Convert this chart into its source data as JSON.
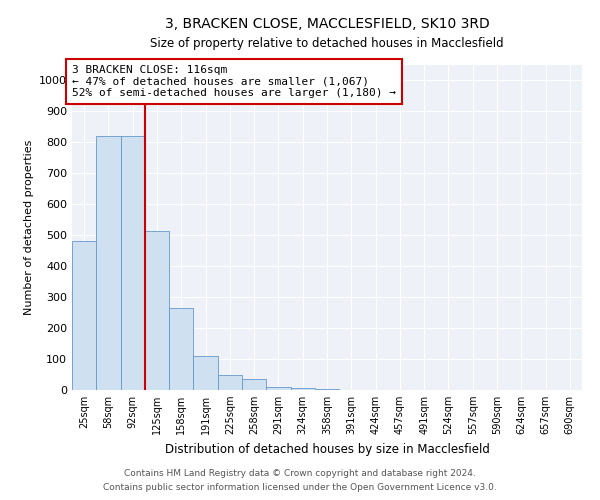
{
  "title": "3, BRACKEN CLOSE, MACCLESFIELD, SK10 3RD",
  "subtitle": "Size of property relative to detached houses in Macclesfield",
  "xlabel": "Distribution of detached houses by size in Macclesfield",
  "ylabel": "Number of detached properties",
  "footnote1": "Contains HM Land Registry data © Crown copyright and database right 2024.",
  "footnote2": "Contains public sector information licensed under the Open Government Licence v3.0.",
  "annotation_title": "3 BRACKEN CLOSE: 116sqm",
  "annotation_line1": "← 47% of detached houses are smaller (1,067)",
  "annotation_line2": "52% of semi-detached houses are larger (1,180) →",
  "bar_color": "#cfe0f0",
  "bar_edge_color": "#6699cc",
  "vline_color": "#cc0000",
  "vline_x": 2.5,
  "categories": [
    "25sqm",
    "58sqm",
    "92sqm",
    "125sqm",
    "158sqm",
    "191sqm",
    "225sqm",
    "258sqm",
    "291sqm",
    "324sqm",
    "358sqm",
    "391sqm",
    "424sqm",
    "457sqm",
    "491sqm",
    "524sqm",
    "557sqm",
    "590sqm",
    "624sqm",
    "657sqm",
    "690sqm"
  ],
  "values": [
    480,
    820,
    820,
    515,
    265,
    110,
    50,
    35,
    10,
    5,
    2,
    0,
    0,
    0,
    0,
    0,
    0,
    0,
    0,
    0,
    0
  ],
  "ylim": [
    0,
    1050
  ],
  "yticks": [
    0,
    100,
    200,
    300,
    400,
    500,
    600,
    700,
    800,
    900,
    1000
  ],
  "figsize": [
    6.0,
    5.0
  ],
  "dpi": 100,
  "plot_bg_color": "#eef2f8"
}
